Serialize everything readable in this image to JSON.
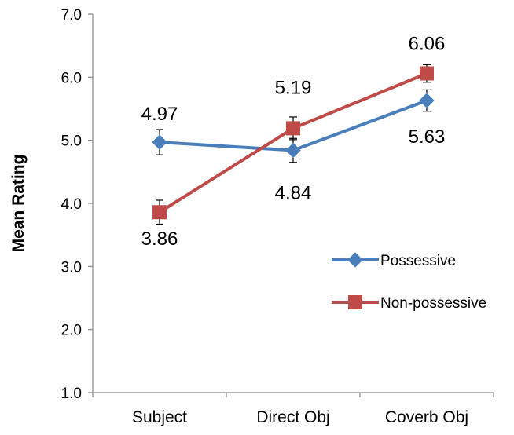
{
  "chart_data": {
    "type": "line",
    "title": "",
    "xlabel": "",
    "ylabel": "Mean Rating",
    "ylim": [
      1.0,
      7.0
    ],
    "yticks": [
      "1.0",
      "2.0",
      "3.0",
      "4.0",
      "5.0",
      "6.0",
      "7.0"
    ],
    "categories": [
      "Subject",
      "Direct Obj",
      "Coverb Obj"
    ],
    "grid": false,
    "legend_position": "right",
    "series": [
      {
        "name": "Possessive",
        "color": "#4A7EBB",
        "marker": "diamond",
        "values": [
          4.97,
          4.84,
          5.63
        ],
        "labels": [
          "4.97",
          "4.84",
          "5.63"
        ],
        "errors": [
          0.2,
          0.19,
          0.17
        ]
      },
      {
        "name": "Non-possessive",
        "color": "#BE4B48",
        "marker": "square",
        "values": [
          3.86,
          5.19,
          6.06
        ],
        "labels": [
          "3.86",
          "5.19",
          "6.06"
        ],
        "errors": [
          0.19,
          0.18,
          0.14
        ]
      }
    ]
  }
}
